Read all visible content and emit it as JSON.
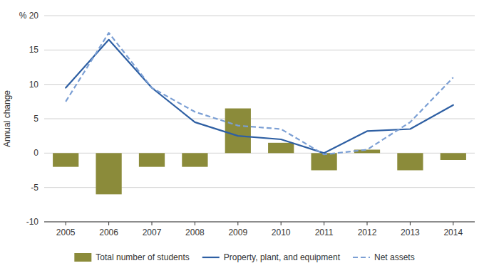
{
  "chart_data": {
    "type": "bar",
    "x": [
      2005,
      2006,
      2007,
      2008,
      2009,
      2010,
      2011,
      2012,
      2013,
      2014
    ],
    "xlim": [
      2004.5,
      2014.5
    ],
    "xticks": [
      2005,
      2006,
      2007,
      2008,
      2009,
      2010,
      2011,
      2012,
      2013,
      2014
    ],
    "ylabel": "Annual change",
    "ylim": [
      -10,
      20
    ],
    "yticks": [
      -10,
      -5,
      0,
      5,
      10,
      15,
      {
        "value": 20,
        "label": "% 20"
      }
    ],
    "grid": true,
    "legend": "bottom",
    "series": [
      {
        "name": "Total number of students",
        "type": "bar",
        "color": "#8b8b3a",
        "values": [
          -2,
          -6,
          -2,
          -2,
          6.5,
          1.5,
          -2.5,
          0.5,
          -2.5,
          -1
        ]
      },
      {
        "name": "Property, plant, and equipment",
        "type": "line",
        "color": "#2e5fa3",
        "line_style": "solid",
        "values": [
          9.5,
          16.5,
          9.5,
          4.5,
          2.5,
          2.0,
          0.0,
          3.2,
          3.5,
          7.0
        ]
      },
      {
        "name": "Net assets",
        "type": "line",
        "color": "#7b9fd4",
        "line_style": "dashed",
        "values": [
          7.5,
          17.5,
          9.5,
          6.0,
          4.0,
          3.5,
          -0.2,
          0.5,
          4.5,
          11.0
        ]
      }
    ]
  }
}
